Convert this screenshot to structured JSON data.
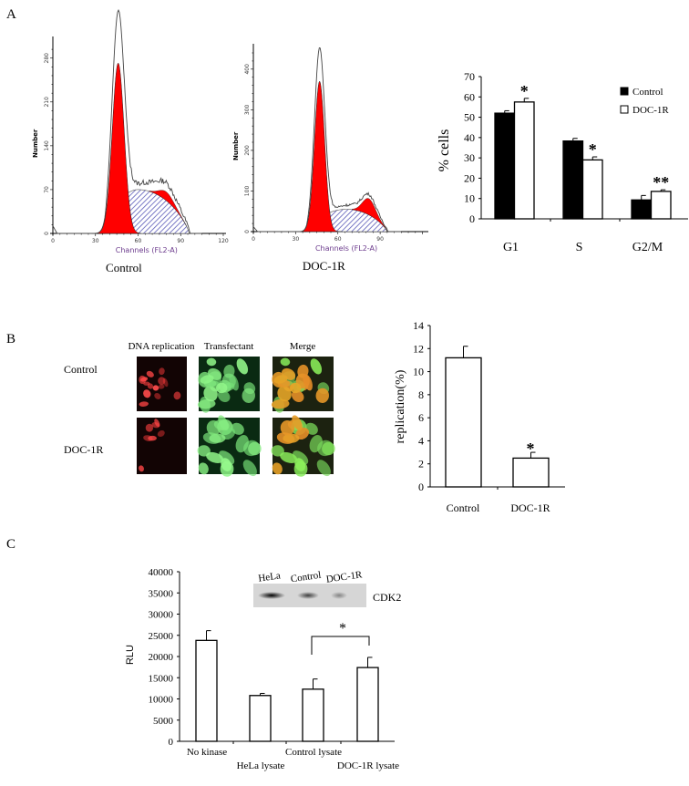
{
  "panels": {
    "a": "A",
    "b": "B",
    "c": "C"
  },
  "chart_data": [
    {
      "id": "hist_control",
      "type": "area",
      "caption": "Control",
      "xlabel": "Channels (FL2-A)",
      "ylabel": "Number",
      "xlim": [
        0,
        120
      ],
      "xticks": [
        0,
        30,
        60,
        90,
        120
      ],
      "ylim": [
        0,
        300
      ],
      "yticks": [
        0,
        70,
        140,
        210,
        280
      ],
      "components": {
        "g1": {
          "peak_channel": 46,
          "peak_count": 272,
          "sd": 4.2,
          "color": "#ff0000"
        },
        "s": {
          "from": 37,
          "to": 96,
          "peak_channel": 60,
          "peak_count": 70,
          "color": "#6f6fc0"
        },
        "g2m": {
          "peak_channel": 80,
          "peak_count": 14,
          "sd": 5,
          "color": "#ff0000"
        },
        "total_peak_count": 308
      }
    },
    {
      "id": "hist_doc1r",
      "type": "area",
      "caption": "DOC-1R",
      "xlabel": "Channels (FL2-A)",
      "ylabel": "Number",
      "xlim": [
        0,
        120
      ],
      "xticks": [
        0,
        30,
        60,
        90
      ],
      "ylim": [
        0,
        440
      ],
      "yticks": [
        0,
        100,
        200,
        300,
        400
      ],
      "components": {
        "g1": {
          "peak_channel": 47,
          "peak_count": 370,
          "sd": 3.6,
          "color": "#ff0000"
        },
        "s": {
          "from": 38,
          "to": 95,
          "peak_channel": 66,
          "peak_count": 55,
          "color": "#6f6fc0"
        },
        "g2m": {
          "peak_channel": 82,
          "peak_count": 40,
          "sd": 4.5,
          "color": "#ff0000"
        },
        "total_peak_count": 420
      }
    },
    {
      "id": "cell_cycle",
      "type": "bar",
      "categories": [
        "G1",
        "S",
        "G2/M"
      ],
      "series": [
        {
          "name": "Control",
          "values": [
            52,
            38.3,
            9.3
          ],
          "errors": [
            1.2,
            1.3,
            2.2
          ],
          "color": "#000000"
        },
        {
          "name": "DOC-1R",
          "values": [
            57.5,
            29,
            13.5
          ],
          "errors": [
            1.8,
            1.5,
            0.8
          ],
          "color": "#ffffff"
        }
      ],
      "annotations": [
        "*",
        "*",
        "**"
      ],
      "ylabel": "% cells",
      "ylim": [
        0,
        70
      ],
      "yticks": [
        0,
        10,
        20,
        30,
        40,
        50,
        60,
        70
      ],
      "legend": "top-right"
    },
    {
      "id": "replication",
      "type": "bar",
      "categories": [
        "Control",
        "DOC-1R"
      ],
      "values": [
        11.2,
        2.5
      ],
      "errors": [
        1.0,
        0.5
      ],
      "annotations": [
        "",
        "*"
      ],
      "ylabel": "replication(%)",
      "ylim": [
        0,
        14
      ],
      "yticks": [
        0,
        2,
        4,
        6,
        8,
        10,
        12,
        14
      ]
    },
    {
      "id": "kinase",
      "type": "bar",
      "categories": [
        "No kinase",
        "HeLa lysate",
        "Control lysate",
        "DOC-1R lysate"
      ],
      "values": [
        23800,
        10800,
        12300,
        17400
      ],
      "errors": [
        2300,
        500,
        2400,
        2400
      ],
      "significance": {
        "between": [
          "Control lysate",
          "DOC-1R lysate"
        ],
        "label": "*"
      },
      "ylabel": "RLU",
      "ylim": [
        0,
        40000
      ],
      "yticks": [
        0,
        5000,
        10000,
        15000,
        20000,
        25000,
        30000,
        35000,
        40000
      ]
    }
  ],
  "micrographs": {
    "columns": [
      "DNA replication",
      "Transfectant",
      "Merge"
    ],
    "rows": [
      "Control",
      "DOC-1R"
    ]
  },
  "blot": {
    "lanes": [
      "HeLa",
      "Control",
      "DOC-1R"
    ],
    "band_intensity": [
      1.0,
      0.55,
      0.3
    ],
    "label": "CDK2"
  }
}
